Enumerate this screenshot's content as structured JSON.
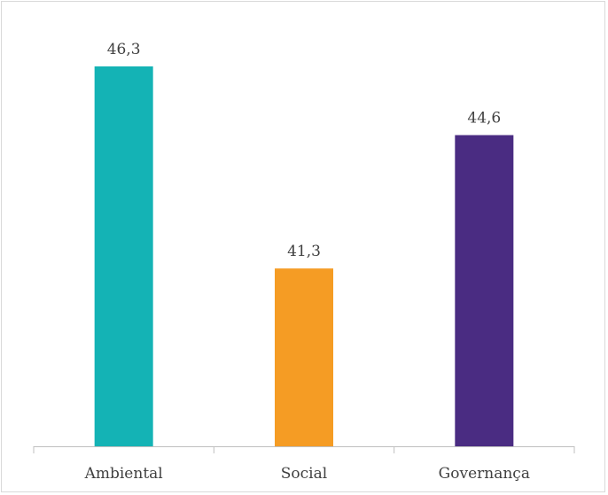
{
  "chart_data": {
    "type": "bar",
    "categories": [
      "Ambiental",
      "Social",
      "Governança"
    ],
    "values": [
      46.3,
      41.3,
      44.6
    ],
    "value_labels": [
      "46,3",
      "41,3",
      "44,6"
    ],
    "colors": [
      "#14b3b5",
      "#f59c24",
      "#4a2c82"
    ],
    "ylim": [
      36.9,
      46.3
    ],
    "axis_color": "#bfbfbf",
    "grid": false,
    "legend": "none"
  }
}
